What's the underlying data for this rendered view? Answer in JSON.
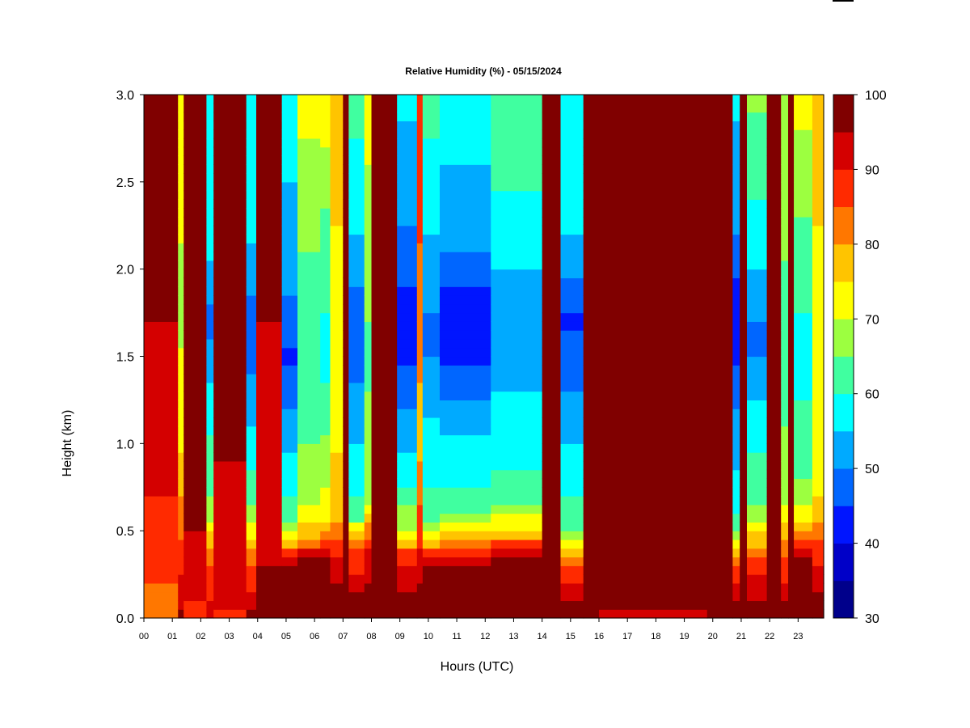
{
  "chart_data": {
    "type": "heatmap",
    "title": "Relative Humidity (%) - 05/15/2024",
    "xlabel": "Hours (UTC)",
    "ylabel": "Height (km)",
    "xlim": [
      0,
      23.9
    ],
    "ylim": [
      0,
      3.0
    ],
    "x_ticks": [
      "00",
      "01",
      "02",
      "03",
      "04",
      "05",
      "06",
      "07",
      "08",
      "09",
      "10",
      "11",
      "12",
      "13",
      "14",
      "15",
      "16",
      "17",
      "18",
      "19",
      "20",
      "21",
      "22",
      "23"
    ],
    "y_ticks": [
      "0.0",
      "0.5",
      "1.0",
      "1.5",
      "2.0",
      "2.5",
      "3.0"
    ],
    "colorbar": {
      "range": [
        30,
        100
      ],
      "step": 5,
      "labels": [
        "30",
        "40",
        "50",
        "60",
        "70",
        "80",
        "90",
        "100"
      ],
      "colors": [
        "#00008b",
        "#0000c8",
        "#0015ff",
        "#0066ff",
        "#00aaff",
        "#00ffff",
        "#40ffa0",
        "#9cff40",
        "#ffff00",
        "#ffc400",
        "#ff7700",
        "#ff2a00",
        "#d40000",
        "#800000"
      ]
    },
    "value_unit": "%",
    "columns": [
      {
        "t": [
          0.0,
          1.2
        ],
        "profile": [
          [
            0.0,
            82
          ],
          [
            0.1,
            84
          ],
          [
            0.3,
            86
          ],
          [
            0.8,
            91
          ],
          [
            1.9,
            96
          ],
          [
            2.0,
            100
          ],
          [
            3.0,
            100
          ]
        ]
      },
      {
        "t": [
          1.2,
          1.4
        ],
        "profile": [
          [
            0.0,
            96
          ],
          [
            0.5,
            84
          ],
          [
            1.0,
            74
          ],
          [
            1.8,
            68
          ],
          [
            3.0,
            75
          ]
        ]
      },
      {
        "t": [
          1.4,
          2.2
        ],
        "profile": [
          [
            0.0,
            85
          ],
          [
            0.1,
            91
          ],
          [
            0.6,
            96
          ],
          [
            1.9,
            97
          ],
          [
            2.0,
            100
          ],
          [
            3.0,
            100
          ]
        ]
      },
      {
        "t": [
          2.2,
          2.45
        ],
        "profile": [
          [
            0.0,
            92
          ],
          [
            0.35,
            84
          ],
          [
            0.6,
            66
          ],
          [
            1.2,
            58
          ],
          [
            1.7,
            48
          ],
          [
            2.2,
            58
          ],
          [
            3.0,
            58
          ]
        ]
      },
      {
        "t": [
          2.45,
          3.6
        ],
        "profile": [
          [
            0.0,
            85
          ],
          [
            0.1,
            94
          ],
          [
            0.8,
            92
          ],
          [
            1.0,
            97
          ],
          [
            1.8,
            98
          ],
          [
            3.0,
            100
          ]
        ]
      },
      {
        "t": [
          3.6,
          3.95
        ],
        "profile": [
          [
            0.0,
            97
          ],
          [
            0.35,
            82
          ],
          [
            0.6,
            66
          ],
          [
            1.0,
            57
          ],
          [
            1.6,
            46
          ],
          [
            2.2,
            56
          ],
          [
            3.0,
            60
          ]
        ]
      },
      {
        "t": [
          3.95,
          4.85
        ],
        "profile": [
          [
            0.0,
            100
          ],
          [
            0.2,
            96
          ],
          [
            0.8,
            90
          ],
          [
            1.9,
            96
          ],
          [
            2.0,
            100
          ],
          [
            3.0,
            100
          ]
        ]
      },
      {
        "t": [
          4.85,
          5.4
        ],
        "profile": [
          [
            0.0,
            100
          ],
          [
            0.25,
            100
          ],
          [
            0.4,
            82
          ],
          [
            0.6,
            62
          ],
          [
            1.0,
            54
          ],
          [
            1.5,
            44
          ],
          [
            2.0,
            52
          ],
          [
            3.0,
            58
          ]
        ]
      },
      {
        "t": [
          5.4,
          6.2
        ],
        "profile": [
          [
            0.0,
            100
          ],
          [
            0.3,
            100
          ],
          [
            0.45,
            80
          ],
          [
            0.7,
            68
          ],
          [
            1.5,
            60
          ],
          [
            2.2,
            66
          ],
          [
            3.0,
            72
          ]
        ]
      },
      {
        "t": [
          6.2,
          6.55
        ],
        "profile": [
          [
            0.0,
            100
          ],
          [
            0.35,
            95
          ],
          [
            0.6,
            72
          ],
          [
            1.5,
            58
          ],
          [
            2.5,
            66
          ],
          [
            3.0,
            75
          ]
        ]
      },
      {
        "t": [
          6.55,
          7.0
        ],
        "profile": [
          [
            0.0,
            100
          ],
          [
            0.35,
            90
          ],
          [
            0.6,
            78
          ],
          [
            1.5,
            70
          ],
          [
            3.0,
            80
          ]
        ]
      },
      {
        "t": [
          7.0,
          7.2
        ],
        "profile": [
          [
            0.0,
            100
          ],
          [
            3.0,
            100
          ]
        ]
      },
      {
        "t": [
          7.2,
          7.75
        ],
        "profile": [
          [
            0.0,
            100
          ],
          [
            0.4,
            85
          ],
          [
            0.6,
            62
          ],
          [
            1.2,
            52
          ],
          [
            1.7,
            46
          ],
          [
            2.2,
            55
          ],
          [
            3.0,
            62
          ]
        ]
      },
      {
        "t": [
          7.75,
          8.0
        ],
        "profile": [
          [
            0.0,
            100
          ],
          [
            0.4,
            90
          ],
          [
            0.7,
            68
          ],
          [
            1.5,
            64
          ],
          [
            3.0,
            72
          ]
        ]
      },
      {
        "t": [
          8.0,
          8.9
        ],
        "profile": [
          [
            0.0,
            100
          ],
          [
            3.0,
            100
          ]
        ]
      },
      {
        "t": [
          8.9,
          9.6
        ],
        "profile": [
          [
            0.0,
            100
          ],
          [
            0.35,
            88
          ],
          [
            0.5,
            70
          ],
          [
            0.8,
            58
          ],
          [
            1.2,
            50
          ],
          [
            1.7,
            40
          ],
          [
            2.0,
            48
          ],
          [
            2.5,
            52
          ],
          [
            3.0,
            56
          ]
        ]
      },
      {
        "t": [
          9.6,
          9.8
        ],
        "profile": [
          [
            0.0,
            100
          ],
          [
            0.4,
            90
          ],
          [
            1.0,
            78
          ],
          [
            3.0,
            90
          ]
        ]
      },
      {
        "t": [
          9.8,
          10.4
        ],
        "profile": [
          [
            0.0,
            100
          ],
          [
            0.25,
            100
          ],
          [
            0.4,
            82
          ],
          [
            0.6,
            62
          ],
          [
            1.1,
            56
          ],
          [
            1.6,
            48
          ],
          [
            2.2,
            55
          ],
          [
            3.0,
            62
          ]
        ]
      },
      {
        "t": [
          10.4,
          12.2
        ],
        "profile": [
          [
            0.0,
            100
          ],
          [
            0.25,
            100
          ],
          [
            0.45,
            80
          ],
          [
            0.65,
            62
          ],
          [
            1.1,
            54
          ],
          [
            1.5,
            44
          ],
          [
            1.8,
            42
          ],
          [
            2.2,
            52
          ],
          [
            3.0,
            58
          ]
        ]
      },
      {
        "t": [
          12.2,
          14.0
        ],
        "profile": [
          [
            0.0,
            100
          ],
          [
            0.3,
            100
          ],
          [
            0.5,
            76
          ],
          [
            0.7,
            62
          ],
          [
            1.2,
            56
          ],
          [
            1.7,
            50
          ],
          [
            2.2,
            58
          ],
          [
            3.0,
            65
          ]
        ]
      },
      {
        "t": [
          14.0,
          14.65
        ],
        "profile": [
          [
            0.0,
            100
          ],
          [
            3.0,
            100
          ]
        ]
      },
      {
        "t": [
          14.65,
          15.45
        ],
        "profile": [
          [
            0.0,
            100
          ],
          [
            0.3,
            85
          ],
          [
            0.55,
            62
          ],
          [
            1.0,
            55
          ],
          [
            1.7,
            44
          ],
          [
            2.2,
            55
          ],
          [
            3.0,
            60
          ]
        ]
      },
      {
        "t": [
          15.45,
          16.0
        ],
        "profile": [
          [
            0.0,
            100
          ],
          [
            3.0,
            100
          ]
        ]
      },
      {
        "t": [
          16.0,
          19.8
        ],
        "profile": [
          [
            0.0,
            90
          ],
          [
            0.06,
            96
          ],
          [
            0.15,
            100
          ],
          [
            3.0,
            100
          ]
        ]
      },
      {
        "t": [
          19.8,
          20.7
        ],
        "profile": [
          [
            0.0,
            94
          ],
          [
            0.08,
            100
          ],
          [
            3.0,
            100
          ]
        ]
      },
      {
        "t": [
          20.7,
          20.95
        ],
        "profile": [
          [
            0.0,
            100
          ],
          [
            0.3,
            85
          ],
          [
            0.6,
            58
          ],
          [
            1.2,
            50
          ],
          [
            1.7,
            40
          ],
          [
            2.2,
            50
          ],
          [
            3.0,
            56
          ]
        ]
      },
      {
        "t": [
          20.95,
          21.2
        ],
        "profile": [
          [
            0.0,
            100
          ],
          [
            3.0,
            100
          ]
        ]
      },
      {
        "t": [
          21.2,
          21.9
        ],
        "profile": [
          [
            0.0,
            100
          ],
          [
            0.35,
            85
          ],
          [
            0.6,
            66
          ],
          [
            1.2,
            56
          ],
          [
            1.6,
            48
          ],
          [
            2.2,
            58
          ],
          [
            3.0,
            66
          ]
        ]
      },
      {
        "t": [
          21.9,
          22.4
        ],
        "profile": [
          [
            0.0,
            100
          ],
          [
            3.0,
            100
          ]
        ]
      },
      {
        "t": [
          22.4,
          22.65
        ],
        "profile": [
          [
            0.0,
            100
          ],
          [
            0.4,
            82
          ],
          [
            0.7,
            68
          ],
          [
            1.5,
            62
          ],
          [
            3.0,
            70
          ]
        ]
      },
      {
        "t": [
          22.65,
          22.85
        ],
        "profile": [
          [
            0.0,
            100
          ],
          [
            3.0,
            100
          ]
        ]
      },
      {
        "t": [
          22.85,
          23.5
        ],
        "profile": [
          [
            0.0,
            100
          ],
          [
            0.3,
            100
          ],
          [
            0.5,
            78
          ],
          [
            0.8,
            64
          ],
          [
            1.5,
            58
          ],
          [
            2.2,
            64
          ],
          [
            3.0,
            72
          ]
        ]
      },
      {
        "t": [
          23.5,
          23.9
        ],
        "profile": [
          [
            0.0,
            100
          ],
          [
            0.35,
            88
          ],
          [
            0.7,
            74
          ],
          [
            1.5,
            70
          ],
          [
            3.0,
            80
          ]
        ]
      }
    ]
  }
}
